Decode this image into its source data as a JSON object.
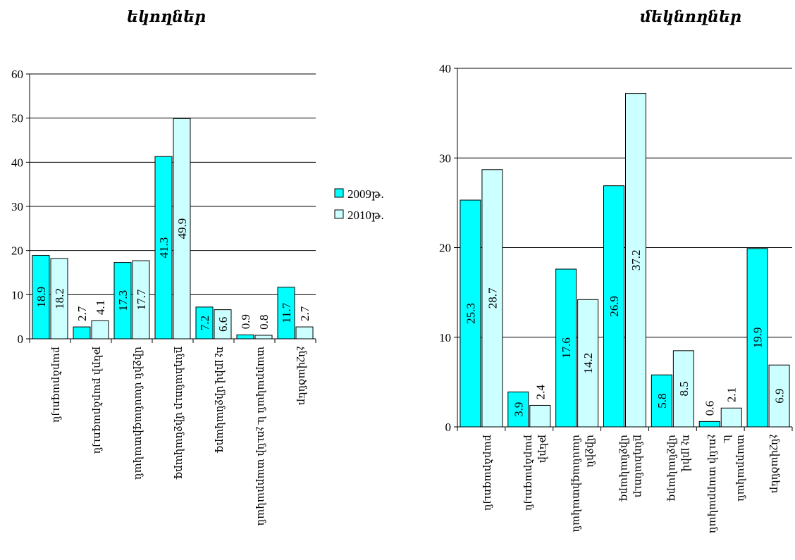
{
  "legend": {
    "items": [
      {
        "label": "2009թ.",
        "color": "#00FFFF"
      },
      {
        "label": "2010թ.",
        "color": "#CCFFFF"
      }
    ]
  },
  "chart_data": [
    {
      "type": "bar",
      "title": "եկողներ",
      "xlabel": "",
      "ylabel": "",
      "ylim": [
        0,
        60
      ],
      "yticks": [
        0,
        10,
        20,
        30,
        40,
        50,
        60
      ],
      "grid": true,
      "legend_position": "right",
      "categories": [
        [
          "բարձրագույն"
        ],
        [
          "թերի բարձրագույն"
        ],
        [
          "միջին մասնագիտական"
        ],
        [
          "ընդհանուր միջնակարգ"
        ],
        [
          "ոչ լրիվ միջնակարգ"
        ],
        [
          "տարրական և չունի տարրական"
        ],
        [
          "չնշվածներ"
        ]
      ],
      "series": [
        {
          "name": "2009թ.",
          "color": "#00FFFF",
          "values": [
            18.9,
            2.7,
            17.3,
            41.3,
            7.2,
            0.9,
            11.7
          ]
        },
        {
          "name": "2010թ.",
          "color": "#CCFFFF",
          "values": [
            18.2,
            4.1,
            17.7,
            49.9,
            6.6,
            0.8,
            2.7
          ]
        }
      ]
    },
    {
      "type": "bar",
      "title": "մեկնողներ",
      "xlabel": "",
      "ylabel": "",
      "ylim": [
        0,
        40
      ],
      "yticks": [
        0,
        10,
        20,
        30,
        40
      ],
      "grid": true,
      "categories": [
        [
          "բարձրագույն"
        ],
        [
          "թերի",
          "բարձրագույն"
        ],
        [
          "միջին",
          "մասնագիտական"
        ],
        [
          "ընդհանուր",
          "միջնակարգ"
        ],
        [
          "ոչ լրիվ",
          "միջնակարգ"
        ],
        [
          "տարրական",
          "և",
          "չունի տարրական"
        ],
        [
          "չնշվածներ"
        ]
      ],
      "series": [
        {
          "name": "2009թ.",
          "color": "#00FFFF",
          "values": [
            25.3,
            3.9,
            17.6,
            26.9,
            5.8,
            0.6,
            19.9
          ]
        },
        {
          "name": "2010թ.",
          "color": "#CCFFFF",
          "values": [
            28.7,
            2.4,
            14.2,
            37.2,
            8.5,
            2.1,
            6.9
          ]
        }
      ]
    }
  ]
}
